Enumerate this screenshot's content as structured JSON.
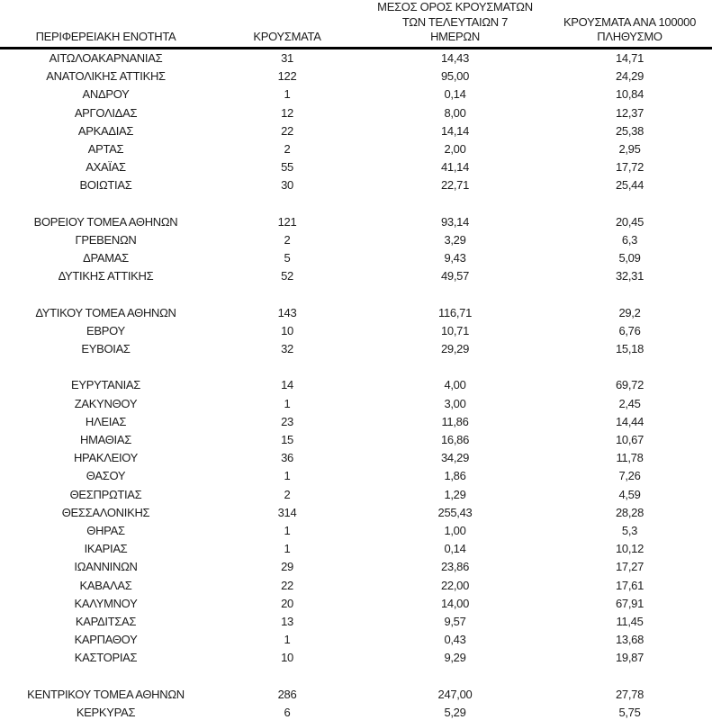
{
  "colors": {
    "background": "#ffffff",
    "text": "#1c1c1c",
    "header_rule": "#000000"
  },
  "table": {
    "columns": [
      {
        "id": "region",
        "lines": [
          "ΠΕΡΙΦΕΡΕΙΑΚΗ ΕΝΟΤΗΤΑ"
        ]
      },
      {
        "id": "cases",
        "lines": [
          "ΚΡΟΥΣΜΑΤΑ"
        ]
      },
      {
        "id": "avg7",
        "lines": [
          "ΜΕΣΟΣ ΟΡΟΣ ΚΡΟΥΣΜΑΤΩΝ",
          "ΤΩΝ ΤΕΛΕΥΤΑΙΩΝ 7",
          "ΗΜΕΡΩΝ"
        ]
      },
      {
        "id": "per100k",
        "lines": [
          "ΚΡΟΥΣΜΑΤΑ ΑΝΑ 100000",
          "ΠΛΗΘΥΣΜΟ"
        ]
      }
    ],
    "rows": [
      {
        "region": "ΑΙΤΩΛΟΑΚΑΡΝΑΝΙΑΣ",
        "cases": "31",
        "avg7": "14,43",
        "per100k": "14,71"
      },
      {
        "region": "ΑΝΑΤΟΛΙΚΗΣ ΑΤΤΙΚΗΣ",
        "cases": "122",
        "avg7": "95,00",
        "per100k": "24,29"
      },
      {
        "region": "ΑΝΔΡΟΥ",
        "cases": "1",
        "avg7": "0,14",
        "per100k": "10,84"
      },
      {
        "region": "ΑΡΓΟΛΙΔΑΣ",
        "cases": "12",
        "avg7": "8,00",
        "per100k": "12,37"
      },
      {
        "region": "ΑΡΚΑΔΙΑΣ",
        "cases": "22",
        "avg7": "14,14",
        "per100k": "25,38"
      },
      {
        "region": "ΑΡΤΑΣ",
        "cases": "2",
        "avg7": "2,00",
        "per100k": "2,95"
      },
      {
        "region": "ΑΧΑΪΑΣ",
        "cases": "55",
        "avg7": "41,14",
        "per100k": "17,72"
      },
      {
        "region": "ΒΟΙΩΤΙΑΣ",
        "cases": "30",
        "avg7": "22,71",
        "per100k": "25,44"
      },
      {
        "spacer": true
      },
      {
        "region": "ΒΟΡΕΙΟΥ ΤΟΜΕΑ ΑΘΗΝΩΝ",
        "cases": "121",
        "avg7": "93,14",
        "per100k": "20,45"
      },
      {
        "region": "ΓΡΕΒΕΝΩΝ",
        "cases": "2",
        "avg7": "3,29",
        "per100k": "6,3"
      },
      {
        "region": "ΔΡΑΜΑΣ",
        "cases": "5",
        "avg7": "9,43",
        "per100k": "5,09"
      },
      {
        "region": "ΔΥΤΙΚΗΣ ΑΤΤΙΚΗΣ",
        "cases": "52",
        "avg7": "49,57",
        "per100k": "32,31"
      },
      {
        "spacer": true
      },
      {
        "region": "ΔΥΤΙΚΟΥ ΤΟΜΕΑ ΑΘΗΝΩΝ",
        "cases": "143",
        "avg7": "116,71",
        "per100k": "29,2"
      },
      {
        "region": "ΕΒΡΟΥ",
        "cases": "10",
        "avg7": "10,71",
        "per100k": "6,76"
      },
      {
        "region": "ΕΥΒΟΙΑΣ",
        "cases": "32",
        "avg7": "29,29",
        "per100k": "15,18"
      },
      {
        "spacer": true
      },
      {
        "region": "ΕΥΡΥΤΑΝΙΑΣ",
        "cases": "14",
        "avg7": "4,00",
        "per100k": "69,72"
      },
      {
        "region": "ΖΑΚΥΝΘΟΥ",
        "cases": "1",
        "avg7": "3,00",
        "per100k": "2,45"
      },
      {
        "region": "ΗΛΕΙΑΣ",
        "cases": "23",
        "avg7": "11,86",
        "per100k": "14,44"
      },
      {
        "region": "ΗΜΑΘΙΑΣ",
        "cases": "15",
        "avg7": "16,86",
        "per100k": "10,67"
      },
      {
        "region": "ΗΡΑΚΛΕΙΟΥ",
        "cases": "36",
        "avg7": "34,29",
        "per100k": "11,78"
      },
      {
        "region": "ΘΑΣΟΥ",
        "cases": "1",
        "avg7": "1,86",
        "per100k": "7,26"
      },
      {
        "region": "ΘΕΣΠΡΩΤΙΑΣ",
        "cases": "2",
        "avg7": "1,29",
        "per100k": "4,59"
      },
      {
        "region": "ΘΕΣΣΑΛΟΝΙΚΗΣ",
        "cases": "314",
        "avg7": "255,43",
        "per100k": "28,28"
      },
      {
        "region": "ΘΗΡΑΣ",
        "cases": "1",
        "avg7": "1,00",
        "per100k": "5,3"
      },
      {
        "region": "ΙΚΑΡΙΑΣ",
        "cases": "1",
        "avg7": "0,14",
        "per100k": "10,12"
      },
      {
        "region": "ΙΩΑΝΝΙΝΩΝ",
        "cases": "29",
        "avg7": "23,86",
        "per100k": "17,27"
      },
      {
        "region": "ΚΑΒΑΛΑΣ",
        "cases": "22",
        "avg7": "22,00",
        "per100k": "17,61"
      },
      {
        "region": "ΚΑΛΥΜΝΟΥ",
        "cases": "20",
        "avg7": "14,00",
        "per100k": "67,91"
      },
      {
        "region": "ΚΑΡΔΙΤΣΑΣ",
        "cases": "13",
        "avg7": "9,57",
        "per100k": "11,45"
      },
      {
        "region": "ΚΑΡΠΑΘΟΥ",
        "cases": "1",
        "avg7": "0,43",
        "per100k": "13,68"
      },
      {
        "region": "ΚΑΣΤΟΡΙΑΣ",
        "cases": "10",
        "avg7": "9,29",
        "per100k": "19,87"
      },
      {
        "spacer": true
      },
      {
        "region": "ΚΕΝΤΡΙΚΟΥ ΤΟΜΕΑ ΑΘΗΝΩΝ",
        "cases": "286",
        "avg7": "247,00",
        "per100k": "27,78"
      },
      {
        "region": "ΚΕΡΚΥΡΑΣ",
        "cases": "6",
        "avg7": "5,29",
        "per100k": "5,75"
      }
    ]
  }
}
